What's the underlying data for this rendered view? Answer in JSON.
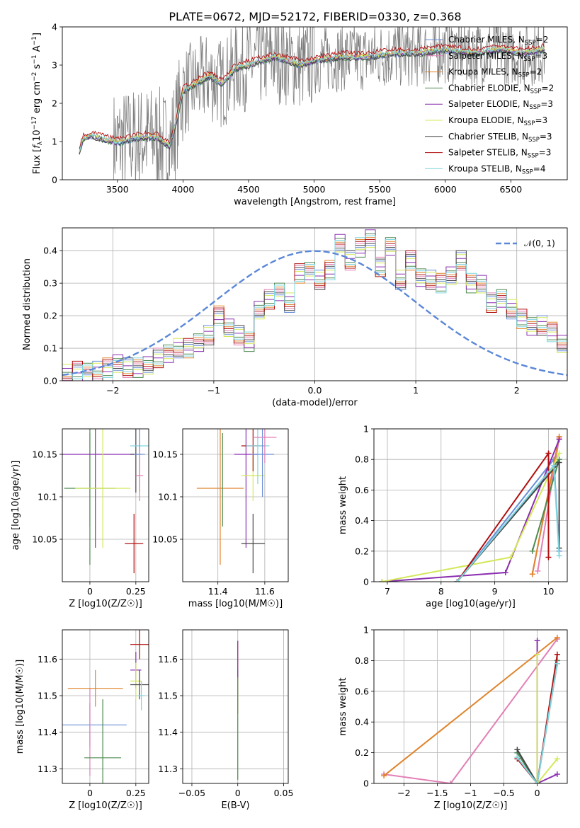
{
  "figure": {
    "title": "PLATE=0672, MJD=52172, FIBERID=0330, z=0.368"
  },
  "models": [
    {
      "name": "Chabrier MILES",
      "nssp": "2",
      "color": "#6a8fd8"
    },
    {
      "name": "Salpeter MILES",
      "nssp": "3",
      "color": "#e27fb6"
    },
    {
      "name": "Kroupa MILES",
      "nssp": "2",
      "color": "#e0842c"
    },
    {
      "name": "Chabrier ELODIE",
      "nssp": "2",
      "color": "#4e8a52"
    },
    {
      "name": "Salpeter ELODIE",
      "nssp": "3",
      "color": "#8a2eb0"
    },
    {
      "name": "Kroupa ELODIE",
      "nssp": "3",
      "color": "#d4e85a"
    },
    {
      "name": "Chabrier STELIB",
      "nssp": "3",
      "color": "#454545"
    },
    {
      "name": "Salpeter STELIB",
      "nssp": "3",
      "color": "#b01010"
    },
    {
      "name": "Kroupa STELIB",
      "nssp": "4",
      "color": "#7fd6e0"
    }
  ],
  "nssp_label": "N",
  "nssp_sub": "SSP",
  "chart_data": [
    {
      "id": "spectrum",
      "type": "line",
      "xlabel": "wavelength [Angstrom, rest frame]",
      "ylabel": "Flux [f_λ 10^-17 erg cm^-2 s^-1 A^-1]",
      "xlim": [
        3080,
        6930
      ],
      "ylim": [
        0,
        4
      ],
      "xticks": [
        3500,
        4000,
        4500,
        5000,
        5500,
        6000,
        6500
      ],
      "yticks": [
        0,
        1,
        2,
        3,
        4
      ],
      "grid": false,
      "legend": "right",
      "data_series_color": "#808080",
      "model_continuum": {
        "x": [
          3210,
          3240,
          3300,
          3400,
          3500,
          3600,
          3700,
          3800,
          3900,
          3950,
          4000,
          4100,
          4200,
          4300,
          4400,
          4500,
          4600,
          4700,
          4800,
          4900,
          5000,
          5200,
          5400,
          5600,
          5800,
          6000,
          6200,
          6400,
          6600,
          6760
        ],
        "y": [
          0.75,
          1.05,
          1.15,
          1.05,
          0.95,
          1.05,
          1.1,
          1.1,
          0.85,
          1.5,
          2.3,
          2.5,
          2.7,
          2.5,
          2.9,
          3.0,
          3.1,
          3.2,
          3.1,
          3.0,
          3.1,
          3.2,
          3.2,
          3.3,
          3.3,
          3.4,
          3.3,
          3.4,
          3.3,
          3.4
        ]
      }
    },
    {
      "id": "residual-histogram",
      "type": "bar",
      "xlabel": "(data-model)/error",
      "ylabel": "Normed distribution",
      "xlim": [
        -2.5,
        2.5
      ],
      "ylim": [
        0,
        0.47
      ],
      "xticks": [
        -2,
        -1,
        0,
        1,
        2
      ],
      "yticks": [
        0.0,
        0.1,
        0.2,
        0.3,
        0.4
      ],
      "grid": true,
      "bin_edges_start": -2.5,
      "bin_width": 0.1,
      "values": [
        0.02,
        0.03,
        0.03,
        0.03,
        0.04,
        0.05,
        0.04,
        0.04,
        0.05,
        0.07,
        0.08,
        0.1,
        0.1,
        0.12,
        0.14,
        0.2,
        0.16,
        0.14,
        0.12,
        0.22,
        0.25,
        0.27,
        0.24,
        0.33,
        0.34,
        0.31,
        0.34,
        0.42,
        0.37,
        0.41,
        0.44,
        0.35,
        0.41,
        0.31,
        0.37,
        0.32,
        0.31,
        0.3,
        0.32,
        0.37,
        0.3,
        0.3,
        0.24,
        0.25,
        0.22,
        0.19,
        0.17,
        0.17,
        0.15,
        0.11
      ],
      "gaussian_label": "𝒩(0, 1)",
      "gaussian_color": "#5b87d8"
    },
    {
      "id": "age-vs-Z",
      "type": "scatter",
      "xlabel": "Z [log10(Z/Z☉)]",
      "ylabel": "age  [log10(age/yr)]",
      "xlim": [
        -0.15,
        0.32
      ],
      "ylim": [
        10.0,
        10.18
      ],
      "xticks": [
        0.0,
        0.25
      ],
      "yticks": [
        10.05,
        10.1,
        10.15
      ],
      "points": [
        {
          "x": 0.0,
          "y": 10.12,
          "xerr": 0.0,
          "yerr": 0.055
        },
        {
          "x": 0.0,
          "y": 10.11,
          "xerr": 0.14,
          "yerr": 0.09
        },
        {
          "x": 0.03,
          "y": 10.15,
          "xerr": 0.22,
          "yerr": 0.11
        },
        {
          "x": 0.07,
          "y": 10.11,
          "xerr": 0.15,
          "yerr": 0.07
        },
        {
          "x": 0.25,
          "y": 10.15,
          "xerr": 0.03,
          "yerr": 0.045
        },
        {
          "x": 0.24,
          "y": 10.045,
          "xerr": 0.05,
          "yerr": 0.035
        },
        {
          "x": 0.27,
          "y": 10.16,
          "xerr": 0.05,
          "yerr": 0.03
        },
        {
          "x": 0.27,
          "y": 10.15,
          "xerr": 0.03,
          "yerr": 0.045
        },
        {
          "x": 0.27,
          "y": 10.125,
          "xerr": 0.02,
          "yerr": 0.03
        }
      ]
    },
    {
      "id": "age-vs-mass",
      "type": "scatter",
      "xlabel": "mass [log10(M/M☉)]",
      "ylabel": "",
      "xlim": [
        11.25,
        11.7
      ],
      "ylim": [
        10.0,
        10.18
      ],
      "xticks": [
        11.4,
        11.6
      ],
      "yticks": [
        10.05,
        10.1,
        10.15
      ],
      "points": [
        {
          "x": 11.41,
          "y": 10.11,
          "xerr": 0.1,
          "yerr": 0.09
        },
        {
          "x": 11.42,
          "y": 10.12,
          "xerr": 0.0,
          "yerr": 0.055
        },
        {
          "x": 11.52,
          "y": 10.15,
          "xerr": 0.05,
          "yerr": 0.11
        },
        {
          "x": 11.55,
          "y": 10.125,
          "xerr": 0.05,
          "yerr": 0.03
        },
        {
          "x": 11.55,
          "y": 10.045,
          "xerr": 0.05,
          "yerr": 0.035
        },
        {
          "x": 11.55,
          "y": 10.16,
          "xerr": 0.05,
          "yerr": 0.03
        },
        {
          "x": 11.57,
          "y": 10.16,
          "xerr": 0.05,
          "yerr": 0.045
        },
        {
          "x": 11.59,
          "y": 10.15,
          "xerr": 0.05,
          "yerr": 0.05
        },
        {
          "x": 11.6,
          "y": 10.17,
          "xerr": 0.05,
          "yerr": 0.03
        }
      ]
    },
    {
      "id": "weight-vs-age",
      "type": "line",
      "xlabel": "age  [log10(age/yr)]",
      "ylabel": "mass weight",
      "xlim": [
        6.75,
        10.35
      ],
      "ylim": [
        0,
        1
      ],
      "xticks": [
        7,
        8,
        9,
        10
      ],
      "yticks": [
        0.0,
        0.2,
        0.4,
        0.6,
        0.8,
        1.0
      ],
      "series": [
        {
          "x": [
            8.3,
            10.1,
            10.2
          ],
          "y": [
            0.0,
            0.8,
            0.2
          ]
        },
        {
          "x": [
            9.7,
            10.2,
            9.8
          ],
          "y": [
            0.05,
            0.94,
            0.07
          ]
        },
        {
          "x": [
            9.7,
            10.2
          ],
          "y": [
            0.05,
            0.95
          ]
        },
        {
          "x": [
            8.3,
            10.2,
            9.7
          ],
          "y": [
            0.0,
            0.8,
            0.2
          ]
        },
        {
          "x": [
            6.9,
            9.2,
            10.2
          ],
          "y": [
            0.0,
            0.06,
            0.93
          ]
        },
        {
          "x": [
            6.9,
            9.3,
            10.2
          ],
          "y": [
            0.0,
            0.16,
            0.84
          ]
        },
        {
          "x": [
            8.3,
            10.2,
            10.2
          ],
          "y": [
            0.0,
            0.78,
            0.22
          ]
        },
        {
          "x": [
            8.3,
            10.0,
            10.0
          ],
          "y": [
            0.0,
            0.84,
            0.16
          ]
        },
        {
          "x": [
            8.3,
            10.1,
            10.2
          ],
          "y": [
            0.0,
            0.76,
            0.17
          ]
        }
      ]
    },
    {
      "id": "mass-vs-Z",
      "type": "scatter",
      "xlabel": "Z [log10(Z/Z☉)]",
      "ylabel": "mass [log10(M/M☉)]",
      "xlim": [
        -0.15,
        0.32
      ],
      "ylim": [
        11.26,
        11.68
      ],
      "xticks": [
        0.0,
        0.25
      ],
      "yticks": [
        11.3,
        11.4,
        11.5,
        11.6
      ],
      "points": [
        {
          "x": 0.0,
          "y": 11.42,
          "xerr": 0.2,
          "yerr": 0.06
        },
        {
          "x": 0.0,
          "y": 11.4,
          "xerr": 0.0,
          "yerr": 0.12
        },
        {
          "x": 0.03,
          "y": 11.52,
          "xerr": 0.15,
          "yerr": 0.05
        },
        {
          "x": 0.07,
          "y": 11.33,
          "xerr": 0.1,
          "yerr": 0.16
        },
        {
          "x": 0.25,
          "y": 11.57,
          "xerr": 0.03,
          "yerr": 0.05
        },
        {
          "x": 0.25,
          "y": 11.54,
          "xerr": 0.03,
          "yerr": 0.05
        },
        {
          "x": 0.27,
          "y": 11.53,
          "xerr": 0.05,
          "yerr": 0.04
        },
        {
          "x": 0.27,
          "y": 11.64,
          "xerr": 0.05,
          "yerr": 0.04
        },
        {
          "x": 0.28,
          "y": 11.5,
          "xerr": 0.02,
          "yerr": 0.04
        }
      ]
    },
    {
      "id": "mass-vs-ebv",
      "type": "scatter",
      "xlabel": "E(B-V)",
      "ylabel": "",
      "xlim": [
        -0.06,
        0.055
      ],
      "ylim": [
        11.26,
        11.68
      ],
      "xticks": [
        -0.05,
        0.0,
        0.05
      ],
      "yticks": [
        11.3,
        11.4,
        11.5,
        11.6
      ],
      "points": [
        {
          "x": 0.0,
          "y": 11.55,
          "xerr": 0.0,
          "yerr": 0.1
        },
        {
          "x": 0.0,
          "y": 11.42,
          "xerr": 0.0,
          "yerr": 0.15
        },
        {
          "x": 0.0,
          "y": 11.6,
          "xerr": 0.0,
          "yerr": 0.05
        }
      ]
    },
    {
      "id": "weight-vs-Z",
      "type": "line",
      "xlabel": "Z [log10(Z/Z☉)]",
      "ylabel": "mass weight",
      "xlim": [
        -2.45,
        0.45
      ],
      "ylim": [
        0,
        1
      ],
      "xticks": [
        -2.0,
        -1.5,
        -1.0,
        -0.5,
        0.0
      ],
      "yticks": [
        0.0,
        0.2,
        0.4,
        0.6,
        0.8,
        1.0
      ],
      "series": [
        {
          "x": [
            -0.3,
            0.0,
            0.3
          ],
          "y": [
            0.2,
            0.0,
            0.8
          ]
        },
        {
          "x": [
            -2.3,
            -1.3,
            0.3
          ],
          "y": [
            0.06,
            0.0,
            0.94
          ]
        },
        {
          "x": [
            -2.3,
            0.3
          ],
          "y": [
            0.05,
            0.95
          ]
        },
        {
          "x": [
            -0.3,
            0.0,
            0.3
          ],
          "y": [
            0.2,
            0.0,
            0.8
          ]
        },
        {
          "x": [
            0.0,
            0.0,
            0.3
          ],
          "y": [
            0.93,
            0.0,
            0.06
          ]
        },
        {
          "x": [
            0.0,
            0.0,
            0.3
          ],
          "y": [
            0.84,
            0.0,
            0.16
          ]
        },
        {
          "x": [
            -0.3,
            0.0,
            0.3
          ],
          "y": [
            0.22,
            0.0,
            0.78
          ]
        },
        {
          "x": [
            -0.3,
            0.0,
            0.3
          ],
          "y": [
            0.16,
            0.0,
            0.84
          ]
        },
        {
          "x": [
            -0.3,
            0.0,
            0.3
          ],
          "y": [
            0.17,
            0.0,
            0.78
          ]
        }
      ]
    }
  ]
}
